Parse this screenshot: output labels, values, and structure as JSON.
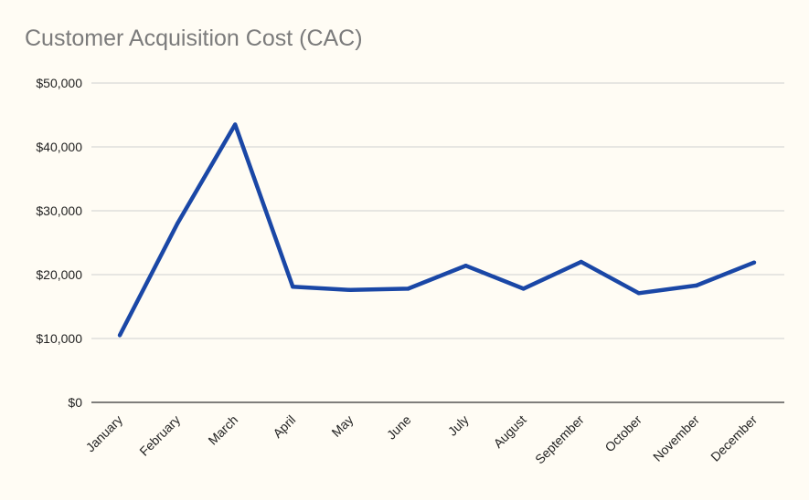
{
  "chart_data": {
    "type": "line",
    "title": "Customer Acquisition Cost (CAC)",
    "xlabel": "",
    "ylabel": "",
    "categories": [
      "January",
      "February",
      "March",
      "April",
      "May",
      "June",
      "July",
      "August",
      "September",
      "October",
      "November",
      "December"
    ],
    "series": [
      {
        "name": "CAC",
        "color": "#1a47a6",
        "values": [
          10500,
          28000,
          43500,
          18100,
          17600,
          17800,
          21400,
          17800,
          22000,
          17100,
          18300,
          21900
        ]
      }
    ],
    "ylim": [
      0,
      50000
    ],
    "yticks": [
      0,
      10000,
      20000,
      30000,
      40000,
      50000
    ],
    "ytick_labels": [
      "$0",
      "$10,000",
      "$20,000",
      "$30,000",
      "$40,000",
      "$50,000"
    ],
    "grid": true,
    "legend": "none"
  }
}
